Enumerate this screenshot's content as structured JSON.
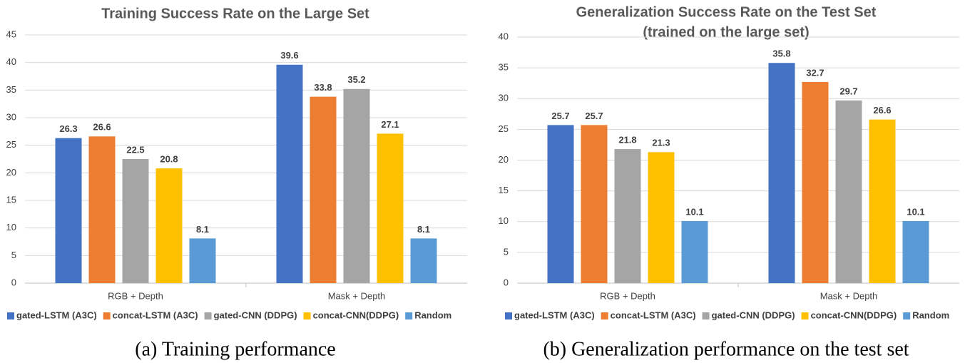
{
  "chart_data": [
    {
      "type": "bar",
      "title": "Training Success Rate on the Large Set",
      "categories": [
        "RGB + Depth",
        "Mask + Depth"
      ],
      "series": [
        {
          "name": "gated-LSTM (A3C)",
          "color": "#4472c4",
          "values": [
            26.3,
            39.6
          ]
        },
        {
          "name": "concat-LSTM (A3C)",
          "color": "#ed7d31",
          "values": [
            26.6,
            33.8
          ]
        },
        {
          "name": "gated-CNN (DDPG)",
          "color": "#a5a5a5",
          "values": [
            22.5,
            35.2
          ]
        },
        {
          "name": "concat-CNN(DDPG)",
          "color": "#ffc000",
          "values": [
            20.8,
            27.1
          ]
        },
        {
          "name": "Random",
          "color": "#5b9bd5",
          "values": [
            8.1,
            8.1
          ]
        }
      ],
      "ylim": [
        0,
        45
      ],
      "yticks": [
        0,
        5,
        10,
        15,
        20,
        25,
        30,
        35,
        40,
        45
      ],
      "grid": true,
      "legend": "bottom",
      "caption": "(a) Training performance"
    },
    {
      "type": "bar",
      "title": "Generalization Success Rate on the Test Set",
      "subtitle": "(trained on the large set)",
      "categories": [
        "RGB + Depth",
        "Mask + Depth"
      ],
      "series": [
        {
          "name": "gated-LSTM (A3C)",
          "color": "#4472c4",
          "values": [
            25.7,
            35.8
          ]
        },
        {
          "name": "concat-LSTM (A3C)",
          "color": "#ed7d31",
          "values": [
            25.7,
            32.7
          ]
        },
        {
          "name": "gated-CNN (DDPG)",
          "color": "#a5a5a5",
          "values": [
            21.8,
            29.7
          ]
        },
        {
          "name": "concat-CNN(DDPG)",
          "color": "#ffc000",
          "values": [
            21.3,
            26.6
          ]
        },
        {
          "name": "Random",
          "color": "#5b9bd5",
          "values": [
            10.1,
            10.1
          ]
        }
      ],
      "ylim": [
        0,
        40
      ],
      "yticks": [
        0,
        5,
        10,
        15,
        20,
        25,
        30,
        35,
        40
      ],
      "grid": true,
      "legend": "bottom",
      "caption": "(b) Generalization performance on the test set"
    }
  ]
}
